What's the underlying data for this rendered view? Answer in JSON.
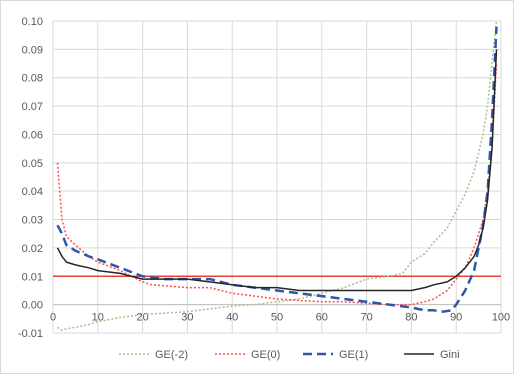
{
  "chart_data": {
    "type": "line",
    "title": "",
    "xlabel": "",
    "ylabel": "",
    "xlim": [
      0,
      100
    ],
    "ylim": [
      -0.01,
      0.1
    ],
    "x_ticks": [
      "0",
      "10",
      "20",
      "30",
      "40",
      "50",
      "60",
      "70",
      "80",
      "90",
      "100"
    ],
    "y_ticks": [
      "-0.01",
      "0.00",
      "0.01",
      "0.02",
      "0.03",
      "0.04",
      "0.05",
      "0.06",
      "0.07",
      "0.08",
      "0.09",
      "0.10"
    ],
    "grid": true,
    "legend_position": "bottom",
    "reference_line": {
      "y": 0.01,
      "color": "#e8433a"
    },
    "series": [
      {
        "name": "GE(-2)",
        "color": "#a9c08a",
        "style": "dotted",
        "points": [
          [
            1,
            -0.008
          ],
          [
            2,
            -0.009
          ],
          [
            3,
            -0.0085
          ],
          [
            5,
            -0.008
          ],
          [
            8,
            -0.007
          ],
          [
            10,
            -0.006
          ],
          [
            15,
            -0.0045
          ],
          [
            20,
            -0.0035
          ],
          [
            25,
            -0.003
          ],
          [
            30,
            -0.0025
          ],
          [
            35,
            -0.0015
          ],
          [
            40,
            -0.0005
          ],
          [
            45,
            0.0
          ],
          [
            50,
            0.001
          ],
          [
            55,
            0.002
          ],
          [
            60,
            0.004
          ],
          [
            65,
            0.006
          ],
          [
            70,
            0.009
          ],
          [
            75,
            0.01
          ],
          [
            78,
            0.011
          ],
          [
            80,
            0.015
          ],
          [
            83,
            0.018
          ],
          [
            85,
            0.022
          ],
          [
            88,
            0.027
          ],
          [
            90,
            0.033
          ],
          [
            92,
            0.039
          ],
          [
            94,
            0.047
          ],
          [
            96,
            0.06
          ],
          [
            97,
            0.07
          ],
          [
            98,
            0.085
          ],
          [
            99,
            0.1
          ]
        ]
      },
      {
        "name": "GE(0)",
        "color": "#ff4d4d",
        "style": "dotted",
        "points": [
          [
            1,
            0.05
          ],
          [
            2,
            0.03
          ],
          [
            3,
            0.024
          ],
          [
            5,
            0.021
          ],
          [
            8,
            0.017
          ],
          [
            10,
            0.015
          ],
          [
            15,
            0.012
          ],
          [
            20,
            0.008
          ],
          [
            22,
            0.007
          ],
          [
            30,
            0.006
          ],
          [
            35,
            0.006
          ],
          [
            40,
            0.004
          ],
          [
            45,
            0.003
          ],
          [
            50,
            0.002
          ],
          [
            55,
            0.0015
          ],
          [
            60,
            0.001
          ],
          [
            65,
            0.001
          ],
          [
            70,
            0.0005
          ],
          [
            75,
            0.0
          ],
          [
            80,
            0.0
          ],
          [
            83,
            0.001
          ],
          [
            85,
            0.002
          ],
          [
            88,
            0.005
          ],
          [
            90,
            0.009
          ],
          [
            92,
            0.013
          ],
          [
            94,
            0.02
          ],
          [
            96,
            0.03
          ],
          [
            97,
            0.04
          ],
          [
            98,
            0.055
          ],
          [
            99,
            0.085
          ]
        ]
      },
      {
        "name": "GE(1)",
        "color": "#2e57a8",
        "style": "dashed",
        "points": [
          [
            1,
            0.028
          ],
          [
            2,
            0.025
          ],
          [
            3,
            0.021
          ],
          [
            5,
            0.019
          ],
          [
            8,
            0.017
          ],
          [
            10,
            0.016
          ],
          [
            15,
            0.013
          ],
          [
            20,
            0.01
          ],
          [
            25,
            0.009
          ],
          [
            30,
            0.009
          ],
          [
            35,
            0.009
          ],
          [
            40,
            0.007
          ],
          [
            45,
            0.006
          ],
          [
            50,
            0.005
          ],
          [
            55,
            0.004
          ],
          [
            60,
            0.003
          ],
          [
            65,
            0.002
          ],
          [
            70,
            0.001
          ],
          [
            75,
            0.0
          ],
          [
            80,
            -0.001
          ],
          [
            83,
            -0.002
          ],
          [
            85,
            -0.002
          ],
          [
            87,
            -0.0025
          ],
          [
            89,
            -0.002
          ],
          [
            90,
            0.0
          ],
          [
            92,
            0.005
          ],
          [
            94,
            0.012
          ],
          [
            95,
            0.02
          ],
          [
            96,
            0.028
          ],
          [
            97,
            0.04
          ],
          [
            98,
            0.065
          ],
          [
            99,
            0.098
          ]
        ]
      },
      {
        "name": "Gini",
        "color": "#262626",
        "style": "solid",
        "points": [
          [
            1,
            0.02
          ],
          [
            2,
            0.017
          ],
          [
            3,
            0.015
          ],
          [
            5,
            0.014
          ],
          [
            8,
            0.013
          ],
          [
            10,
            0.012
          ],
          [
            15,
            0.011
          ],
          [
            20,
            0.009
          ],
          [
            25,
            0.009
          ],
          [
            30,
            0.009
          ],
          [
            35,
            0.008
          ],
          [
            40,
            0.007
          ],
          [
            45,
            0.006
          ],
          [
            50,
            0.006
          ],
          [
            55,
            0.005
          ],
          [
            60,
            0.005
          ],
          [
            65,
            0.005
          ],
          [
            70,
            0.005
          ],
          [
            75,
            0.005
          ],
          [
            80,
            0.005
          ],
          [
            83,
            0.006
          ],
          [
            85,
            0.007
          ],
          [
            88,
            0.008
          ],
          [
            90,
            0.01
          ],
          [
            92,
            0.013
          ],
          [
            94,
            0.017
          ],
          [
            95,
            0.021
          ],
          [
            96,
            0.027
          ],
          [
            97,
            0.037
          ],
          [
            98,
            0.055
          ],
          [
            99,
            0.09
          ]
        ]
      }
    ]
  }
}
